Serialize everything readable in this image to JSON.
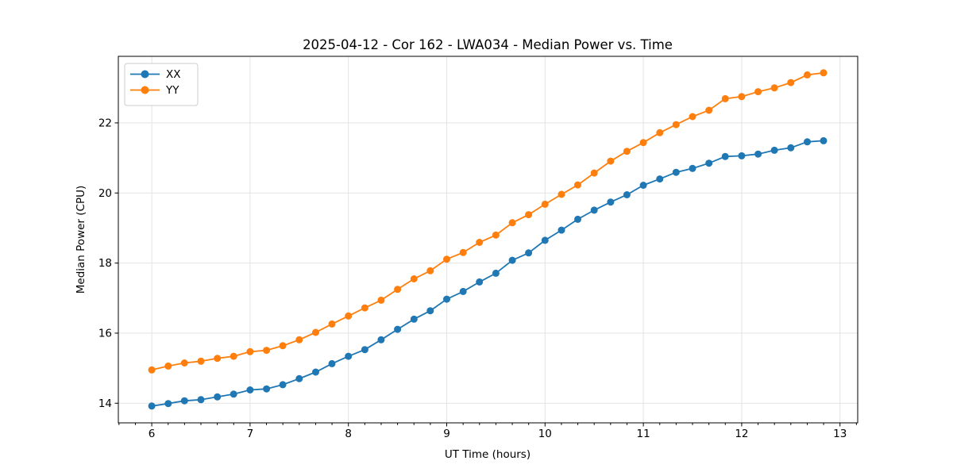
{
  "chart_data": {
    "type": "line",
    "title": "2025-04-12 - Cor 162 - LWA034 - Median Power vs. Time",
    "xlabel": "UT Time (hours)",
    "ylabel": "Median Power (CPU)",
    "xlim": [
      5.66,
      13.18
    ],
    "ylim": [
      13.44,
      23.9
    ],
    "xticks": [
      6,
      7,
      8,
      9,
      10,
      11,
      12,
      13
    ],
    "yticks": [
      14,
      16,
      18,
      20,
      22
    ],
    "x_minor_step": 0.166667,
    "grid": true,
    "legend_position": "upper left",
    "x": [
      6.0,
      6.167,
      6.333,
      6.5,
      6.667,
      6.833,
      7.0,
      7.167,
      7.333,
      7.5,
      7.667,
      7.833,
      8.0,
      8.167,
      8.333,
      8.5,
      8.667,
      8.833,
      9.0,
      9.167,
      9.333,
      9.5,
      9.667,
      9.833,
      10.0,
      10.167,
      10.333,
      10.5,
      10.667,
      10.833,
      11.0,
      11.167,
      11.333,
      11.5,
      11.667,
      11.833,
      12.0,
      12.167,
      12.333,
      12.5,
      12.667,
      12.833
    ],
    "series": [
      {
        "name": "XX",
        "color": "#1f77b4",
        "values": [
          13.92,
          13.99,
          14.07,
          14.1,
          14.18,
          14.26,
          14.38,
          14.41,
          14.53,
          14.7,
          14.89,
          15.13,
          15.34,
          15.53,
          15.81,
          16.11,
          16.4,
          16.64,
          16.97,
          17.19,
          17.46,
          17.71,
          18.08,
          18.29,
          18.65,
          18.94,
          19.25,
          19.51,
          19.74,
          19.95,
          20.22,
          20.4,
          20.59,
          20.7,
          20.85,
          21.04,
          21.06,
          21.11,
          21.22,
          21.29,
          21.46,
          21.49
        ]
      },
      {
        "name": "YY",
        "color": "#ff7f0e",
        "values": [
          14.95,
          15.06,
          15.15,
          15.2,
          15.28,
          15.34,
          15.47,
          15.51,
          15.64,
          15.81,
          16.02,
          16.26,
          16.49,
          16.72,
          16.94,
          17.25,
          17.55,
          17.78,
          18.11,
          18.3,
          18.59,
          18.8,
          19.15,
          19.38,
          19.68,
          19.96,
          20.23,
          20.57,
          20.91,
          21.19,
          21.44,
          21.72,
          21.95,
          22.18,
          22.36,
          22.69,
          22.75,
          22.89,
          23.0,
          23.15,
          23.37,
          23.43
        ]
      }
    ]
  }
}
